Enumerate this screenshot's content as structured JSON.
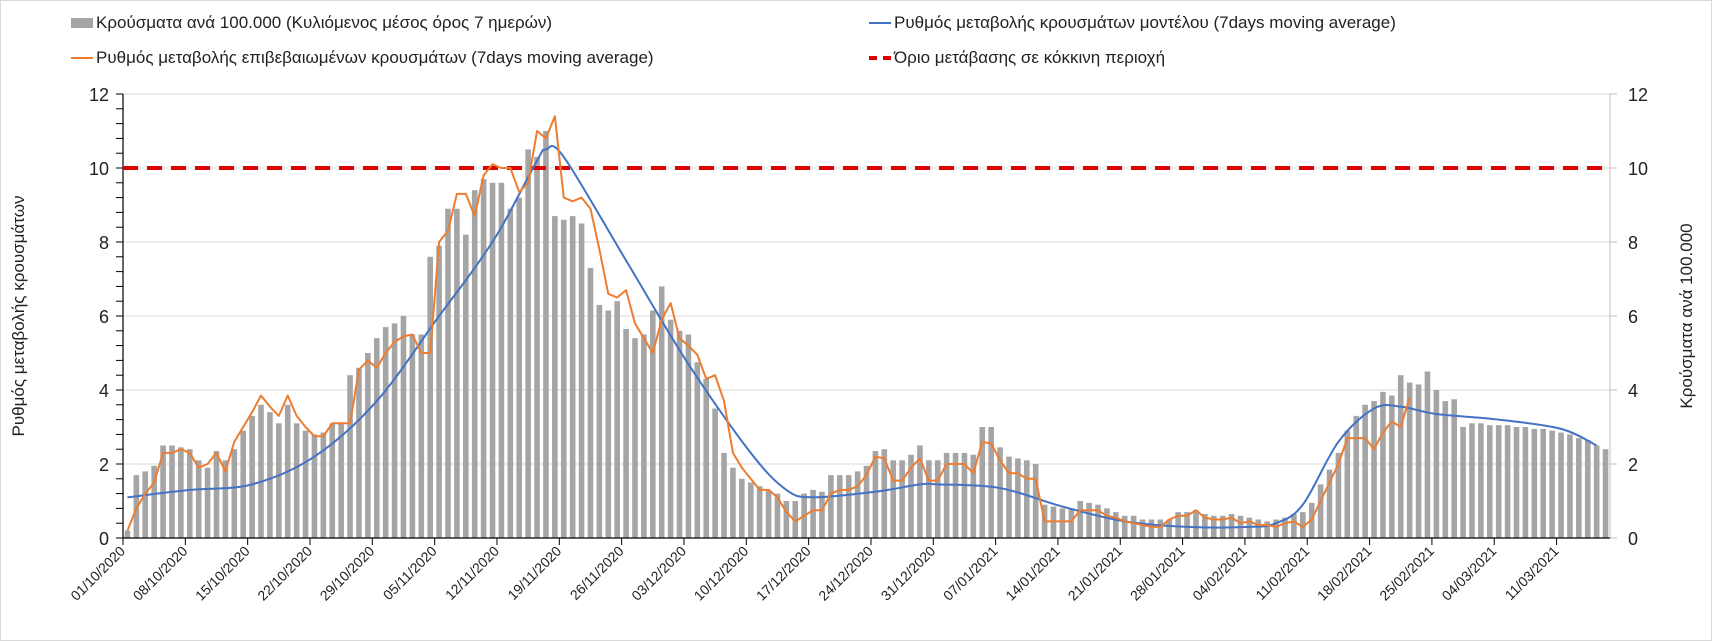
{
  "chart_data": {
    "type": "bar+line",
    "legend": {
      "bars": "Κρούσματα ανά 100.000 (Κυλιόμενος μέσος όρος 7 ημερών)",
      "observed": "Ρυθμός μεταβολής επιβεβαιωμένων κρουσμάτων (7days moving average)",
      "model": "Ρυθμός μεταβολής κρουσμάτων μοντέλου (7days moving average)",
      "threshold": "Όριο μετάβασης σε κόκκινη περιοχή"
    },
    "legend_placement": "top",
    "ylabel_left": "Ρυθμός μεταβολής κρουσμάτων",
    "ylabel_right": "Κρούσματα ανά 100.000",
    "ylim": [
      0,
      12
    ],
    "y_ticks": [
      "0",
      "2",
      "4",
      "6",
      "8",
      "10",
      "12"
    ],
    "start_date": "01/10/2020",
    "x_tick_labels": [
      "01/10/2020",
      "08/10/2020",
      "15/10/2020",
      "22/10/2020",
      "29/10/2020",
      "05/11/2020",
      "12/11/2020",
      "19/11/2020",
      "26/11/2020",
      "03/12/2020",
      "10/12/2020",
      "17/12/2020",
      "24/12/2020",
      "31/12/2020",
      "07/01/2021",
      "14/01/2021",
      "21/01/2021",
      "28/01/2021",
      "04/02/2021",
      "11/02/2021",
      "18/02/2021",
      "25/02/2021",
      "04/03/2021",
      "11/03/2021"
    ],
    "threshold": 10,
    "cases_per_100k": [
      0.2,
      1.7,
      1.8,
      1.95,
      2.5,
      2.5,
      2.45,
      2.4,
      2.1,
      1.9,
      2.35,
      2.1,
      2.4,
      2.9,
      3.3,
      3.6,
      3.4,
      3.1,
      3.6,
      3.1,
      2.9,
      2.8,
      2.85,
      3.1,
      3.1,
      4.4,
      4.6,
      5.0,
      5.4,
      5.7,
      5.8,
      6.0,
      5.5,
      5.5,
      7.6,
      7.9,
      8.9,
      8.9,
      8.2,
      9.4,
      9.7,
      9.6,
      9.6,
      8.9,
      9.2,
      10.5,
      10.3,
      11.0,
      8.7,
      8.6,
      8.7,
      8.5,
      7.3,
      6.3,
      6.15,
      6.4,
      5.65,
      5.4,
      5.5,
      6.15,
      6.8,
      5.9,
      5.6,
      5.5,
      4.75,
      4.3,
      3.5,
      2.3,
      1.9,
      1.6,
      1.5,
      1.4,
      1.3,
      1.2,
      1.0,
      1.0,
      1.2,
      1.3,
      1.25,
      1.7,
      1.7,
      1.7,
      1.8,
      1.95,
      2.35,
      2.4,
      2.1,
      2.1,
      2.25,
      2.5,
      2.1,
      2.1,
      2.3,
      2.3,
      2.3,
      2.25,
      3.0,
      3.0,
      2.45,
      2.2,
      2.15,
      2.1,
      2.0,
      0.9,
      0.85,
      0.8,
      0.8,
      1.0,
      0.95,
      0.9,
      0.8,
      0.7,
      0.6,
      0.6,
      0.5,
      0.5,
      0.5,
      0.5,
      0.7,
      0.7,
      0.75,
      0.65,
      0.6,
      0.6,
      0.65,
      0.6,
      0.55,
      0.5,
      0.45,
      0.5,
      0.55,
      0.65,
      0.7,
      0.95,
      1.45,
      1.85,
      2.3,
      2.9,
      3.3,
      3.6,
      3.7,
      3.95,
      3.85,
      4.4,
      4.2,
      4.15,
      4.5,
      4.0,
      3.7,
      3.75,
      3.0,
      3.1,
      3.1,
      3.05,
      3.05,
      3.05,
      3.0,
      3.0,
      2.95,
      2.95,
      2.9,
      2.85,
      2.8,
      2.7,
      2.65,
      2.5,
      2.4
    ],
    "observed_rate": [
      0.2,
      0.8,
      1.2,
      1.5,
      2.3,
      2.3,
      2.4,
      2.3,
      1.9,
      2.0,
      2.3,
      1.8,
      2.6,
      3.0,
      3.4,
      3.85,
      3.55,
      3.3,
      3.85,
      3.3,
      3.0,
      2.75,
      2.75,
      3.1,
      3.1,
      3.1,
      4.55,
      4.8,
      4.6,
      5.0,
      5.3,
      5.45,
      5.5,
      5.0,
      5.0,
      8.0,
      8.3,
      9.3,
      9.3,
      8.7,
      9.8,
      10.1,
      10.0,
      10.0,
      9.35,
      9.6,
      11.0,
      10.8,
      11.4,
      9.2,
      9.1,
      9.2,
      8.9,
      7.8,
      6.6,
      6.5,
      6.7,
      5.8,
      5.4,
      5.0,
      5.9,
      6.35,
      5.4,
      5.2,
      4.95,
      4.3,
      4.4,
      3.7,
      2.3,
      1.9,
      1.6,
      1.3,
      1.3,
      1.1,
      0.7,
      0.45,
      0.6,
      0.75,
      0.75,
      1.2,
      1.3,
      1.3,
      1.4,
      1.7,
      2.2,
      2.15,
      1.55,
      1.55,
      1.9,
      2.15,
      1.55,
      1.55,
      2.0,
      2.0,
      2.0,
      1.75,
      2.6,
      2.55,
      2.1,
      1.75,
      1.75,
      1.6,
      1.6,
      0.45,
      0.45,
      0.45,
      0.45,
      0.75,
      0.75,
      0.75,
      0.6,
      0.55,
      0.45,
      0.4,
      0.35,
      0.3,
      0.3,
      0.5,
      0.6,
      0.6,
      0.75,
      0.55,
      0.5,
      0.5,
      0.55,
      0.4,
      0.45,
      0.35,
      0.35,
      0.3,
      0.4,
      0.45,
      0.3,
      0.5,
      1.0,
      1.5,
      2.0,
      2.7,
      2.7,
      2.7,
      2.4,
      2.85,
      3.15,
      3.0,
      3.8
    ],
    "model_rate_knots": [
      [
        0,
        1.1
      ],
      [
        7,
        1.3
      ],
      [
        14,
        1.45
      ],
      [
        21,
        2.2
      ],
      [
        28,
        3.7
      ],
      [
        35,
        6.0
      ],
      [
        39,
        7.3
      ],
      [
        42,
        8.4
      ],
      [
        46,
        10.2
      ],
      [
        47,
        10.5
      ],
      [
        49,
        10.3
      ],
      [
        56,
        7.5
      ],
      [
        63,
        4.7
      ],
      [
        70,
        2.3
      ],
      [
        74,
        1.3
      ],
      [
        77,
        1.1
      ],
      [
        84,
        1.25
      ],
      [
        89,
        1.45
      ],
      [
        91,
        1.45
      ],
      [
        98,
        1.35
      ],
      [
        105,
        0.85
      ],
      [
        112,
        0.45
      ],
      [
        119,
        0.3
      ],
      [
        126,
        0.3
      ],
      [
        129,
        0.4
      ],
      [
        132,
        0.9
      ],
      [
        136,
        2.6
      ],
      [
        140,
        3.5
      ],
      [
        143,
        3.55
      ],
      [
        147,
        3.35
      ],
      [
        154,
        3.2
      ],
      [
        161,
        2.95
      ],
      [
        165,
        2.5
      ]
    ],
    "colors": {
      "bars": "#a5a5a5",
      "observed": "#ed7d31",
      "model": "#4472c4",
      "threshold": "#e00000",
      "grid": "#d9d9d9"
    }
  }
}
